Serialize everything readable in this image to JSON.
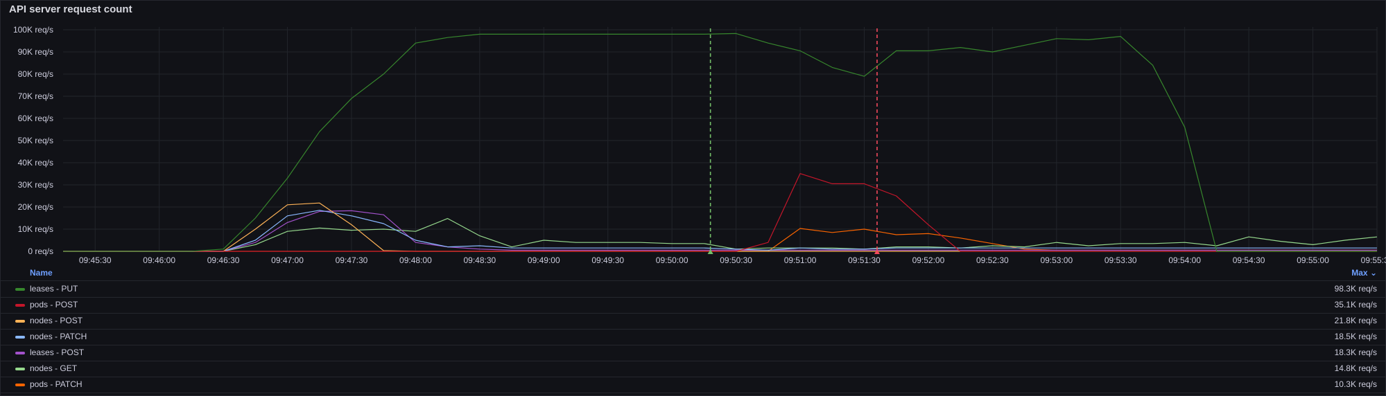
{
  "panel": {
    "title": "API server request count"
  },
  "legend": {
    "name_header": "Name",
    "max_header": "Max ⌄"
  },
  "chart_data": {
    "type": "line",
    "title": "API server request count",
    "y_unit": "req/s",
    "y_ticks": [
      "0 req/s",
      "10K req/s",
      "20K req/s",
      "30K req/s",
      "40K req/s",
      "50K req/s",
      "60K req/s",
      "70K req/s",
      "80K req/s",
      "90K req/s",
      "100K req/s"
    ],
    "ylim": [
      0,
      100000
    ],
    "x_ticks": [
      "09:45:30",
      "09:46:00",
      "09:46:30",
      "09:47:00",
      "09:47:30",
      "09:48:00",
      "09:48:30",
      "09:49:00",
      "09:49:30",
      "09:50:00",
      "09:50:30",
      "09:51:00",
      "09:51:30",
      "09:52:00",
      "09:52:30",
      "09:53:00",
      "09:53:30",
      "09:54:00",
      "09:54:30",
      "09:55:00",
      "09:55:30"
    ],
    "x": [
      "09:45:15",
      "09:45:30",
      "09:45:45",
      "09:46:00",
      "09:46:15",
      "09:46:30",
      "09:46:45",
      "09:47:00",
      "09:47:15",
      "09:47:30",
      "09:47:45",
      "09:48:00",
      "09:48:15",
      "09:48:30",
      "09:48:45",
      "09:49:00",
      "09:49:15",
      "09:49:30",
      "09:49:45",
      "09:50:00",
      "09:50:15",
      "09:50:30",
      "09:50:45",
      "09:51:00",
      "09:51:15",
      "09:51:30",
      "09:51:45",
      "09:52:00",
      "09:52:15",
      "09:52:30",
      "09:52:45",
      "09:53:00",
      "09:53:15",
      "09:53:30",
      "09:53:45",
      "09:54:00",
      "09:54:15",
      "09:54:30",
      "09:54:45",
      "09:55:00",
      "09:55:15",
      "09:55:30"
    ],
    "annotations": [
      {
        "time": "09:50:18",
        "color": "#73bf69"
      },
      {
        "time": "09:51:36",
        "color": "#f2495c"
      }
    ],
    "grid": true,
    "legend_placement": "bottom",
    "series": [
      {
        "name": "leases - PUT",
        "color": "#37872d",
        "max": "98.3K req/s",
        "values": [
          0,
          0,
          0,
          0,
          0,
          1000,
          15000,
          33000,
          54000,
          69000,
          80000,
          94000,
          96500,
          98000,
          98000,
          98000,
          98000,
          98000,
          98000,
          98000,
          98000,
          98300,
          94000,
          90500,
          83000,
          79000,
          90500,
          90500,
          92000,
          90000,
          93000,
          96000,
          95500,
          97000,
          84000,
          56000,
          0,
          0,
          0,
          0,
          0,
          0
        ]
      },
      {
        "name": "pods - POST",
        "color": "#c4162a",
        "max": "35.1K req/s",
        "values": [
          0,
          0,
          0,
          0,
          0,
          0,
          0,
          0,
          0,
          0,
          0,
          0,
          0,
          0,
          0,
          0,
          0,
          0,
          0,
          0,
          0,
          0,
          4000,
          35100,
          30500,
          30500,
          25000,
          12000,
          0,
          0,
          0,
          0,
          0,
          0,
          0,
          0,
          0,
          0,
          0,
          0,
          0,
          0
        ]
      },
      {
        "name": "nodes - POST",
        "color": "#ffb357",
        "max": "21.8K req/s",
        "values": [
          0,
          0,
          0,
          0,
          0,
          0,
          10000,
          21000,
          21800,
          12000,
          300,
          0,
          0,
          0,
          0,
          0,
          0,
          0,
          0,
          0,
          0,
          0,
          0,
          0,
          0,
          0,
          0,
          0,
          0,
          0,
          0,
          0,
          0,
          0,
          0,
          0,
          0,
          0,
          0,
          0,
          0,
          0
        ]
      },
      {
        "name": "nodes - PATCH",
        "color": "#8ab8ff",
        "max": "18.5K req/s",
        "values": [
          0,
          0,
          0,
          0,
          0,
          0,
          5000,
          16000,
          18500,
          16000,
          12500,
          5000,
          2000,
          2500,
          1500,
          1500,
          1500,
          1500,
          1500,
          1500,
          1500,
          1000,
          500,
          1500,
          1000,
          1000,
          1500,
          1500,
          1500,
          1500,
          1500,
          1500,
          1500,
          1500,
          1500,
          1500,
          1500,
          1500,
          1500,
          1500,
          1500,
          1500
        ]
      },
      {
        "name": "leases - POST",
        "color": "#a352cc",
        "max": "18.3K req/s",
        "values": [
          0,
          0,
          0,
          0,
          0,
          0,
          4000,
          13000,
          18000,
          18300,
          16500,
          4000,
          2000,
          1000,
          500,
          500,
          500,
          500,
          500,
          500,
          500,
          500,
          500,
          500,
          500,
          500,
          500,
          500,
          500,
          500,
          500,
          500,
          500,
          500,
          500,
          500,
          500,
          500,
          500,
          500,
          500,
          500
        ]
      },
      {
        "name": "nodes - GET",
        "color": "#96d98d",
        "max": "14.8K req/s",
        "values": [
          0,
          0,
          0,
          0,
          0,
          0,
          3000,
          9000,
          10500,
          9500,
          10000,
          9000,
          14800,
          7000,
          2000,
          5000,
          4000,
          4000,
          4000,
          3500,
          3500,
          1000,
          1500,
          1500,
          1500,
          1000,
          2000,
          2000,
          1500,
          2500,
          2000,
          4000,
          2500,
          3500,
          3500,
          4000,
          2500,
          6500,
          4500,
          3000,
          5000,
          6500
        ]
      },
      {
        "name": "pods - PATCH",
        "color": "#fa6400",
        "max": "10.3K req/s",
        "values": [
          0,
          0,
          0,
          0,
          0,
          0,
          0,
          0,
          0,
          0,
          0,
          0,
          0,
          0,
          0,
          0,
          0,
          0,
          0,
          0,
          0,
          0,
          0,
          10300,
          8500,
          10000,
          7500,
          8000,
          6000,
          3500,
          1000,
          500,
          500,
          500,
          500,
          500,
          500,
          500,
          500,
          500,
          500,
          500
        ]
      }
    ]
  }
}
